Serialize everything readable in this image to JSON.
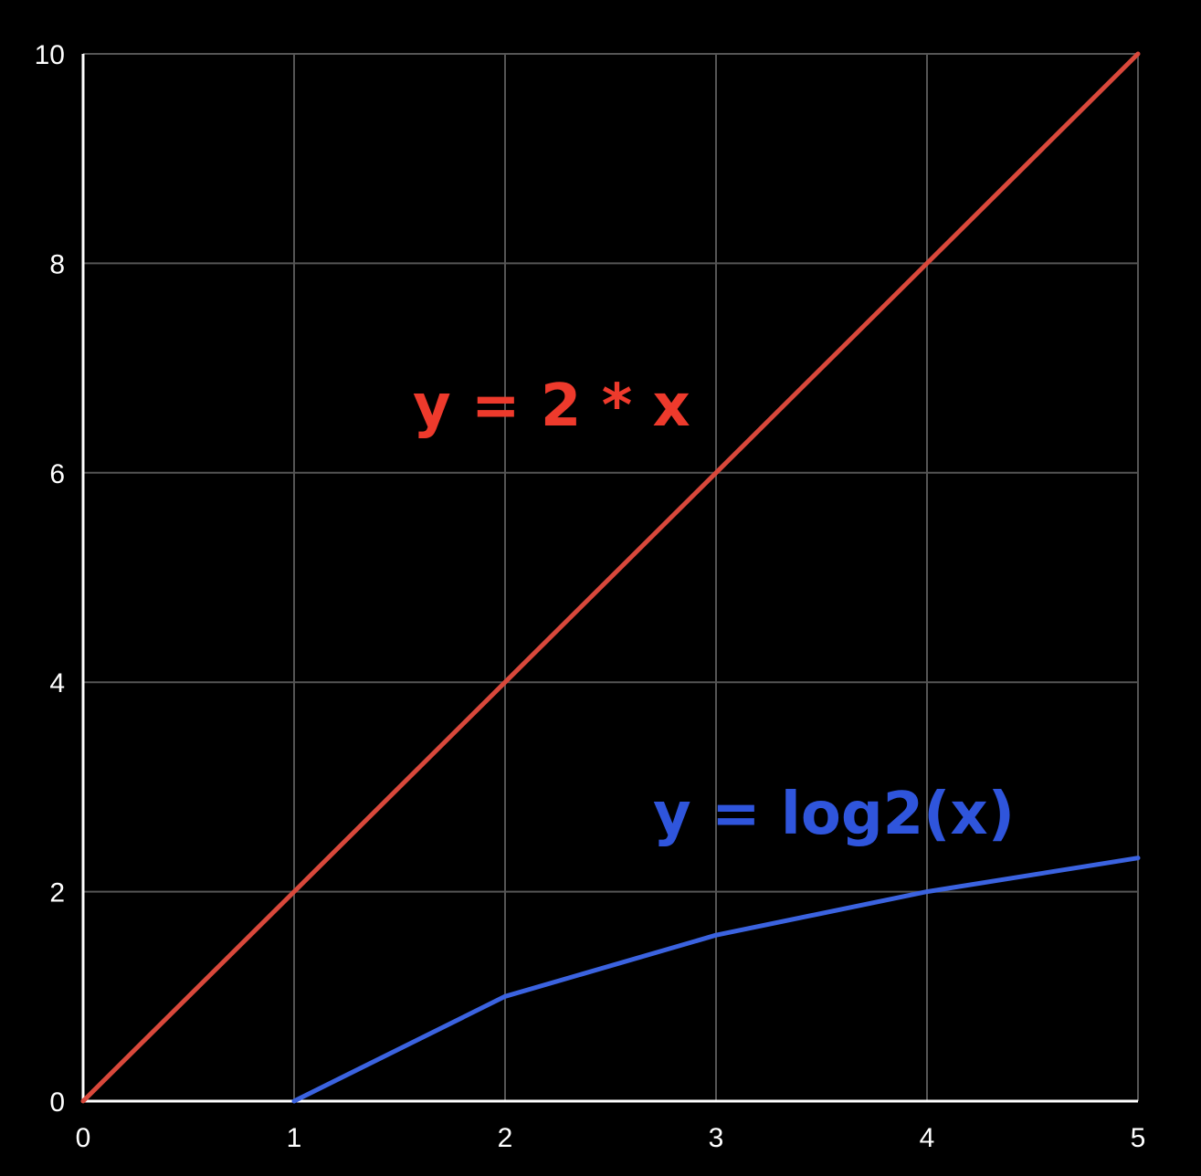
{
  "chart_data": {
    "type": "line",
    "x": [
      0,
      1,
      2,
      3,
      4,
      5
    ],
    "xlim": [
      0,
      5
    ],
    "ylim": [
      0,
      10
    ],
    "x_ticks": [
      "0",
      "1",
      "2",
      "3",
      "4",
      "5"
    ],
    "y_ticks": [
      "0",
      "2",
      "4",
      "6",
      "8",
      "10"
    ],
    "grid": true,
    "background": "#000000",
    "grid_color": "#555555",
    "axis_color": "#ffffff",
    "series": [
      {
        "x": [
          0,
          1,
          2,
          3,
          4,
          5
        ],
        "values": [
          0,
          2,
          4,
          6,
          8,
          10
        ],
        "color": "#d9483b"
      },
      {
        "x": [
          1,
          2,
          3,
          4,
          5
        ],
        "values": [
          0,
          1,
          1.585,
          2,
          2.322
        ],
        "color": "#3b63e0"
      }
    ],
    "annotations": [
      {
        "text": "y = 2 * x",
        "color": "#ee3a2c"
      },
      {
        "text": "y = log2(x)",
        "color": "#2f55dc"
      }
    ]
  }
}
